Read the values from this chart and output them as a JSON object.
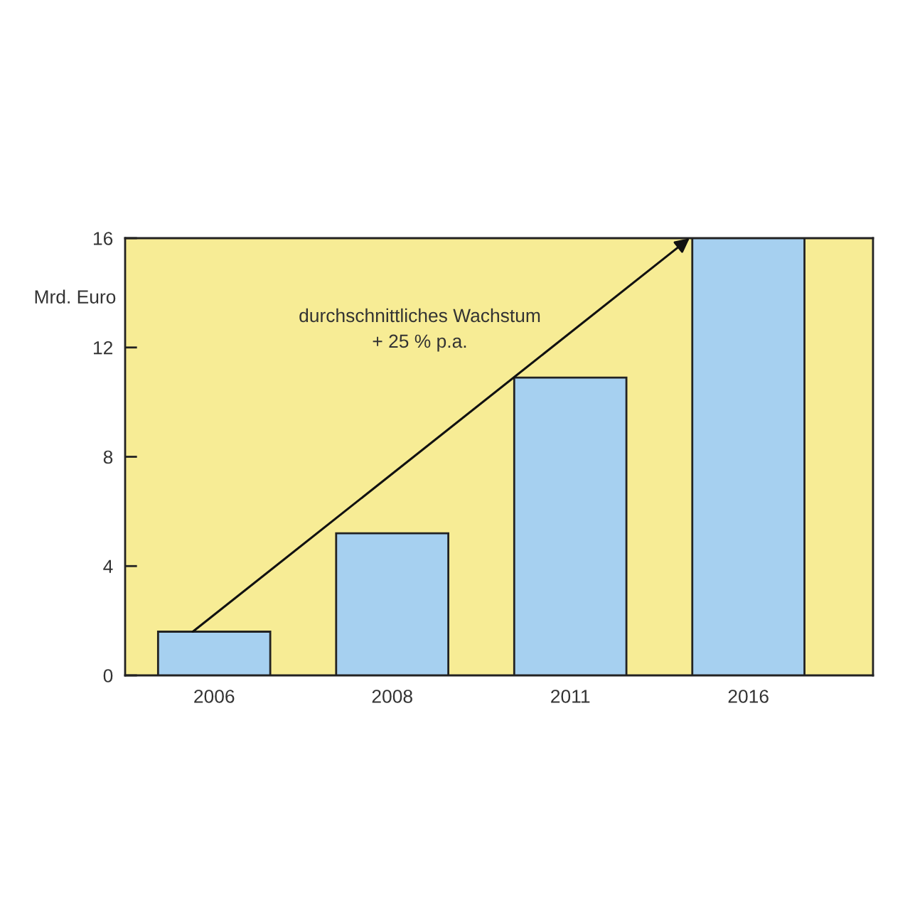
{
  "chart_data": {
    "type": "bar",
    "ylabel": "Mrd. Euro",
    "categories": [
      "2006",
      "2008",
      "2011",
      "2016"
    ],
    "values": [
      1.6,
      5.2,
      10.9,
      16
    ],
    "color": "#a6d0f0",
    "ylim": [
      0,
      16
    ],
    "yticks": [
      0,
      4,
      8,
      12,
      16
    ],
    "annotations": [
      "durchschnittliches Wachstum\n+ 25 % p.a."
    ]
  }
}
